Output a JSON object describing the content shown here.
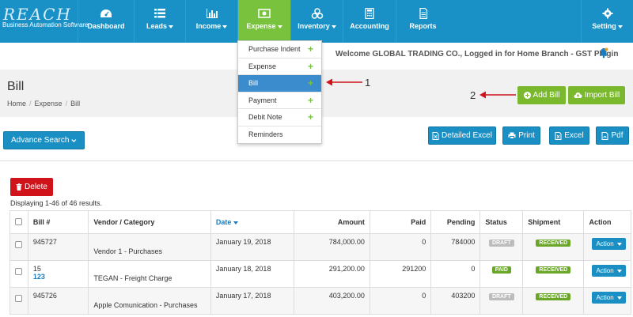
{
  "logo": {
    "main": "REACH",
    "tagline": "Business Automation Software"
  },
  "nav": {
    "items": [
      {
        "label": "Dashboard",
        "icon": "dashboard-icon"
      },
      {
        "label": "Leads",
        "icon": "list-icon",
        "dropdown": true
      },
      {
        "label": "Income",
        "icon": "bar-chart-icon",
        "dropdown": true
      },
      {
        "label": "Expense",
        "icon": "money-icon",
        "dropdown": true,
        "active": true
      },
      {
        "label": "Inventory",
        "icon": "cubes-icon",
        "dropdown": true
      },
      {
        "label": "Accounting",
        "icon": "calculator-icon"
      },
      {
        "label": "Reports",
        "icon": "document-icon"
      },
      {
        "label": "Setting",
        "icon": "gear-icon",
        "dropdown": true
      }
    ]
  },
  "expense_menu": {
    "items": [
      {
        "label": "Purchase Indent",
        "plus": "+"
      },
      {
        "label": "Expense",
        "plus": "+"
      },
      {
        "label": "Bill",
        "plus": "+",
        "selected": true
      },
      {
        "label": "Payment",
        "plus": "+"
      },
      {
        "label": "Debit Note",
        "plus": "+"
      },
      {
        "label": "Reminders",
        "plus": ""
      }
    ]
  },
  "welcome": "Welcome GLOBAL TRADING CO., Logged in for Home Branch - GST Plugin",
  "page": {
    "title": "Bill",
    "breadcrumb": [
      "Home",
      "Expense",
      "Bill"
    ]
  },
  "actions": {
    "add_bill": "Add Bill",
    "import_bill": "Import Bill",
    "advance_search": "Advance Search",
    "detailed_excel": "Detailed Excel",
    "print": "Print",
    "excel": "Excel",
    "pdf": "Pdf",
    "delete": "Delete"
  },
  "annotations": {
    "one": "1",
    "two": "2"
  },
  "results_summary": "Displaying 1-46 of 46 results.",
  "table": {
    "headers": [
      "Bill #",
      "Vendor / Category",
      "Date",
      "Amount",
      "Paid",
      "Pending",
      "Status",
      "Shipment",
      "Action"
    ],
    "rows": [
      {
        "bill": "945727",
        "bill2": "",
        "vendor": "Vendor 1 - Purchases",
        "date": "January 19, 2018",
        "amount": "784,000.00",
        "paid": "0",
        "pending": "784000",
        "status": "DRAFT",
        "shipment": "RECEIVED",
        "action": "Action"
      },
      {
        "bill": "15",
        "bill2": "123",
        "vendor": "TEGAN - Freight Charge",
        "date": "January 18, 2018",
        "amount": "291,200.00",
        "paid": "291200",
        "pending": "0",
        "status": "PAID",
        "shipment": "RECEIVED",
        "action": "Action"
      },
      {
        "bill": "945726",
        "bill2": "",
        "vendor": "Apple Comunication - Purchases",
        "date": "January 17, 2018",
        "amount": "403,200.00",
        "paid": "0",
        "pending": "403200",
        "status": "DRAFT",
        "shipment": "RECEIVED",
        "action": "Action"
      }
    ]
  },
  "colors": {
    "nav": "#1a91c6",
    "active": "#79c23e",
    "green_btn": "#7ab92e",
    "blue_btn": "#1a8fc4",
    "delete": "#d0121b",
    "draft": "#bdbdbd",
    "paid_received": "#6aa628"
  }
}
